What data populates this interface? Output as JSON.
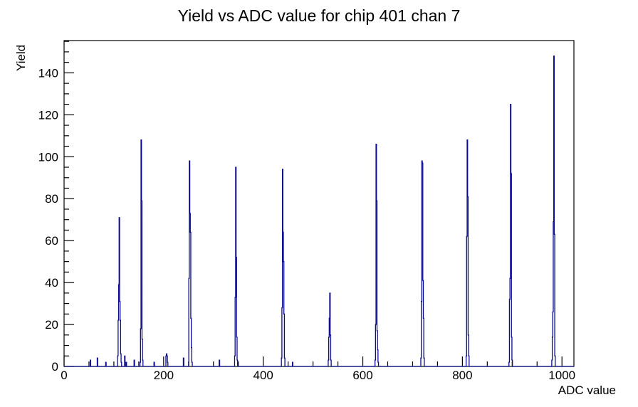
{
  "chart_data": {
    "type": "line",
    "subtype": "histogram-step",
    "title": "Yield vs ADC value for chip 401 chan 7",
    "xlabel": "ADC value",
    "ylabel": "Yield",
    "xlim": [
      0,
      1024
    ],
    "ylim": [
      0,
      155.4
    ],
    "x_major_ticks": [
      0,
      200,
      400,
      600,
      800,
      1000
    ],
    "x_minor_step": 50,
    "y_major_ticks": [
      0,
      20,
      40,
      60,
      80,
      100,
      120,
      140
    ],
    "y_minor_step": 5,
    "grid": false,
    "legend": "none",
    "line_color": "#0a0a8c",
    "frame_color": "#000000",
    "background_color": "#ffffff",
    "bars": [
      [
        53,
        3
      ],
      [
        67,
        4
      ],
      [
        84,
        2
      ],
      [
        108,
        5
      ],
      [
        109,
        22
      ],
      [
        110,
        39
      ],
      [
        111,
        71
      ],
      [
        112,
        31
      ],
      [
        113,
        22
      ],
      [
        114,
        6
      ],
      [
        115,
        2
      ],
      [
        122,
        5
      ],
      [
        125,
        2
      ],
      [
        141,
        3
      ],
      [
        153,
        2
      ],
      [
        154,
        18
      ],
      [
        155,
        108
      ],
      [
        156,
        79
      ],
      [
        157,
        13
      ],
      [
        158,
        3
      ],
      [
        181,
        2
      ],
      [
        205,
        5
      ],
      [
        206,
        6
      ],
      [
        207,
        5
      ],
      [
        208,
        2
      ],
      [
        240,
        4
      ],
      [
        251,
        42
      ],
      [
        252,
        98
      ],
      [
        253,
        73
      ],
      [
        254,
        64
      ],
      [
        255,
        23
      ],
      [
        256,
        9
      ],
      [
        257,
        2
      ],
      [
        312,
        3
      ],
      [
        343,
        5
      ],
      [
        344,
        33
      ],
      [
        345,
        95
      ],
      [
        346,
        52
      ],
      [
        347,
        14
      ],
      [
        348,
        3
      ],
      [
        437,
        4
      ],
      [
        438,
        28
      ],
      [
        439,
        94
      ],
      [
        440,
        64
      ],
      [
        441,
        50
      ],
      [
        442,
        25
      ],
      [
        443,
        4
      ],
      [
        459,
        2
      ],
      [
        531,
        3
      ],
      [
        532,
        14
      ],
      [
        533,
        23
      ],
      [
        534,
        35
      ],
      [
        535,
        15
      ],
      [
        536,
        3
      ],
      [
        625,
        3
      ],
      [
        626,
        20
      ],
      [
        627,
        106
      ],
      [
        628,
        79
      ],
      [
        629,
        17
      ],
      [
        630,
        8
      ],
      [
        631,
        2
      ],
      [
        717,
        4
      ],
      [
        718,
        31
      ],
      [
        719,
        98
      ],
      [
        720,
        97
      ],
      [
        721,
        41
      ],
      [
        722,
        23
      ],
      [
        723,
        4
      ],
      [
        808,
        5
      ],
      [
        809,
        62
      ],
      [
        810,
        108
      ],
      [
        811,
        81
      ],
      [
        812,
        15
      ],
      [
        813,
        5
      ],
      [
        894,
        2
      ],
      [
        895,
        32
      ],
      [
        896,
        42
      ],
      [
        897,
        125
      ],
      [
        898,
        92
      ],
      [
        899,
        14
      ],
      [
        900,
        3
      ],
      [
        980,
        3
      ],
      [
        981,
        14
      ],
      [
        982,
        26
      ],
      [
        983,
        69
      ],
      [
        984,
        148
      ],
      [
        985,
        63
      ],
      [
        986,
        5
      ]
    ]
  }
}
